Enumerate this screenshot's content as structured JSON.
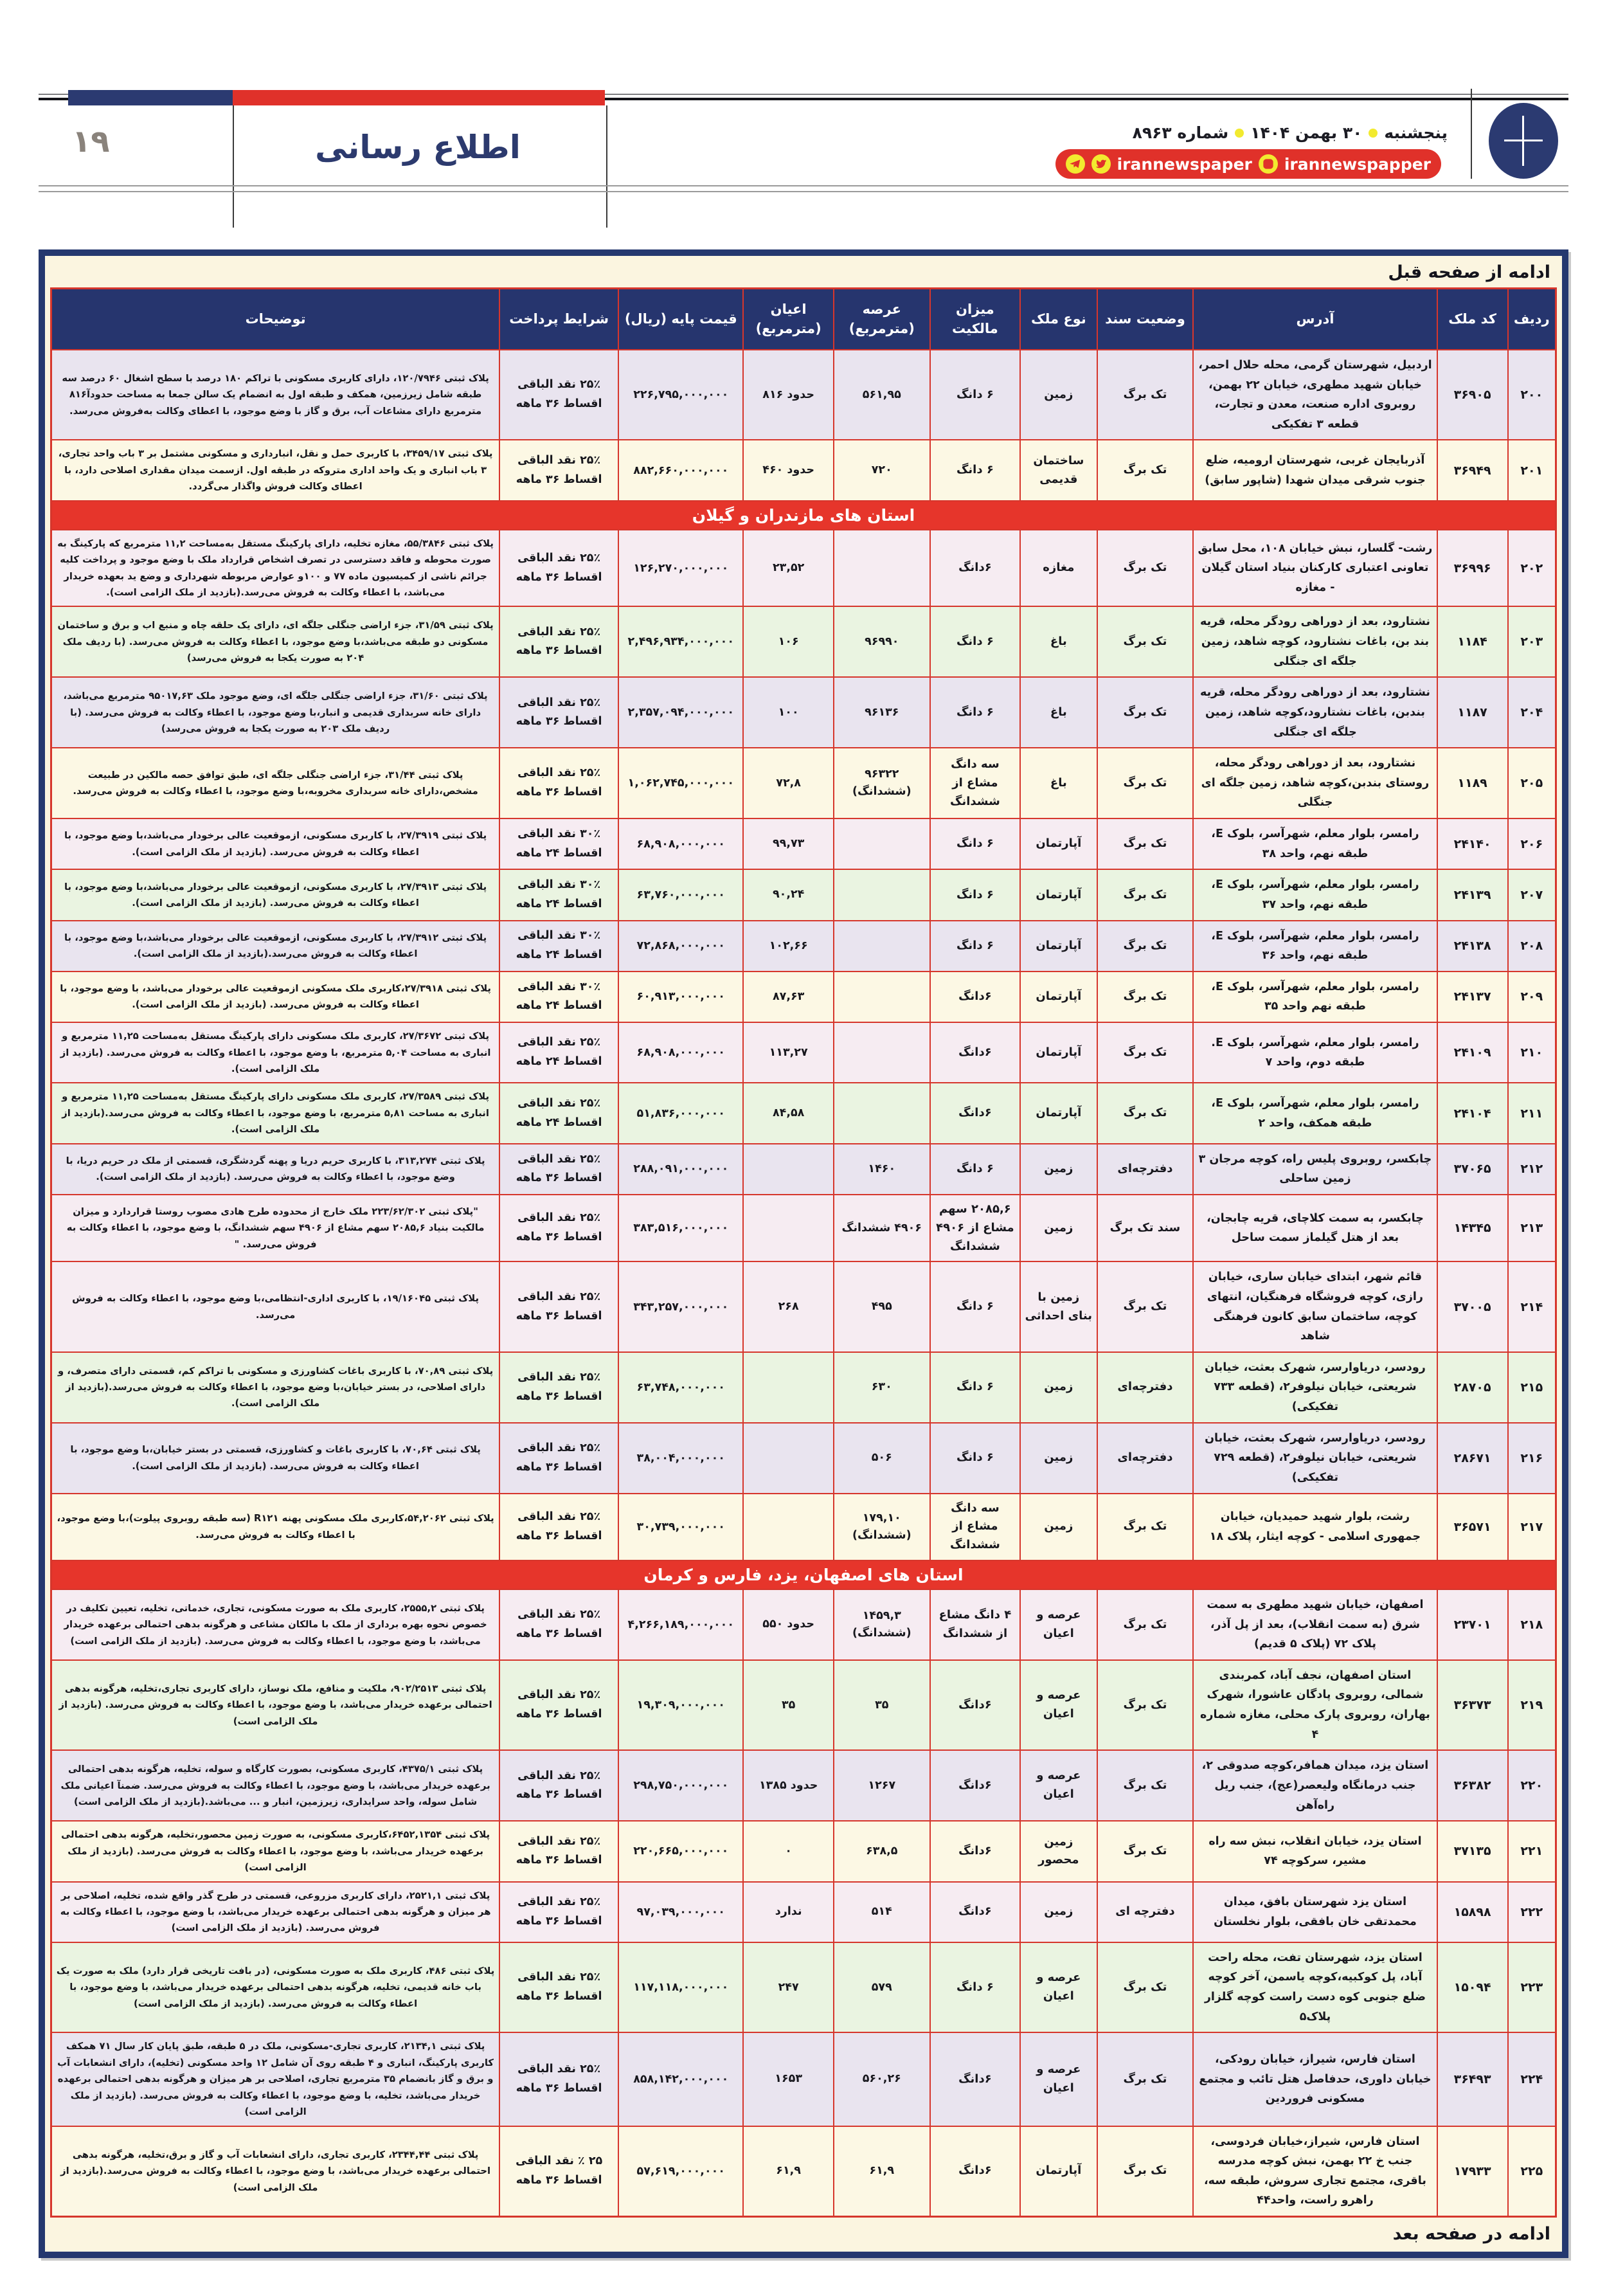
{
  "page": {
    "number": "۱۹",
    "section_title": "اطلاع رسانی",
    "date_parts": [
      "پنجشنبه",
      "۳۰ بهمن ۱۴۰۴",
      "شماره ۸۹۶۳"
    ],
    "social": {
      "handle_main": "irannewspaper",
      "handle_instagram": "irannewspapper"
    },
    "continue_top": "ادامه از صفحه قبل",
    "continue_bottom": "ادامه در صفحه بعد"
  },
  "colors": {
    "masthead_navy": "#2b3a71",
    "masthead_red": "#e0312a",
    "dot_yellow": "#f2ea2f",
    "table_border_navy": "#25386f",
    "grid_red": "#d6362c",
    "header_navy": "#26356e",
    "section_red": "#e6352b",
    "row_pink": "#f6ecf2",
    "row_green": "#eaf4e1",
    "row_lavender": "#e9e4ef",
    "row_cream": "#fcf8e4"
  },
  "table": {
    "columns": [
      "ردیف",
      "کد ملک",
      "آدرس",
      "وضعیت سند",
      "نوع ملک",
      "میزان مالکیت",
      "عرصه (مترمربع)",
      "اعیان (مترمربع)",
      "قیمت پایه (ریال)",
      "شرایط پرداخت",
      "توضیحات"
    ],
    "entries": [
      {
        "no": "۲۰۰",
        "code": "۳۶۹۰۵",
        "address": "اردبیل، شهرستان گرمی، محله حلال احمر، خیابان شهید مطهری، خیابان ۲۲ بهمن، روبروی اداره صنعت، معدن و تجارت، قطعه ۳ تفکیکی",
        "deed": "تک برگ",
        "type": "زمین",
        "ownership": "۶ دانگ",
        "land": "۵۶۱,۹۵",
        "building": "حدود ۸۱۶",
        "price": "۲۲۶,۷۹۵,۰۰۰,۰۰۰",
        "terms": "۲۵٪ نقد الباقی اقساط ۳۶ ماهه",
        "notes": "پلاک ثبتی ۱۲۰/۷۹۴۶، دارای کاربری مسکونی با تراکم ۱۸۰ درصد با سطح اشغال ۶۰ درصد سه طبقه شامل زیرزمین، همکف و طبقه اول به انضمام یک سالن جمعا به مساحت حدودآ۸۱۶ مترمربع دارای مشاعات آب، برق و گاز با وضع موجود، با اعطای وکالت به‌فروش می‌رسد.",
        "tint": "t-lav"
      },
      {
        "no": "۲۰۱",
        "code": "۳۶۹۴۹",
        "address": "آذربایجان غربی، شهرستان ارومیه، ضلع جنوب شرقی میدان شهدا (شاپور سابق)",
        "deed": "تک برگ",
        "type": "ساختمان قدیمی",
        "ownership": "۶ دانگ",
        "land": "۷۲۰",
        "building": "حدود ۴۶۰",
        "price": "۸۸۲,۶۶۰,۰۰۰,۰۰۰",
        "terms": "۲۵٪ نقد الباقی اقساط ۳۶ ماهه",
        "notes": "پلاک ثبتی ۳۴۵۹/۱۷، با کاربری حمل و نقل، انبارداری و مسکونی مشتمل بر ۳ باب واحد تجاری، ۳ باب انباری و یک واحد اداری متروکه در طبقه اول. ازسمت میدان مقداری اصلاحی دارد، با اعطای وکالت فروش واگذار می‌گردد.",
        "tint": "t-cream"
      },
      {
        "section": "استان های مازندران و گیلان"
      },
      {
        "no": "۲۰۲",
        "code": "۳۶۹۹۶",
        "address": "رشت- گلسار، نبش خیابان ۱۰۸، محل سابق تعاونی اعتباری کارکنان بنیاد استان گیلان - مغازه",
        "deed": "تک برگ",
        "type": "مغازه",
        "ownership": "۶دانگ",
        "land": "",
        "building": "۲۳,۵۲",
        "price": "۱۲۶,۲۷۰,۰۰۰,۰۰۰",
        "terms": "۲۵٪ نقد الباقی اقساط ۳۶ ماهه",
        "notes": "پلاک ثبتی ۵۵/۳۸۴۶، مغازه تخلیه، دارای پارکینگ مستقل به‌مساحت ۱۱,۲ مترمربع که پارکینگ به صورت محوطه و فاقد دسترسی در تصرف اشخاص قرارداد ملک با وضع موجود و پرداخت کلیه جرائم ناشی از کمیسیون ماده ۷۷ و ۱۰۰و عوارض مربوطه شهرداری و وضع ید بعهده خریدار می‌باشد، با اعطاء وکالت به فروش می‌رسد.(بازدید از ملک الزامی است).",
        "tint": "t-pink"
      },
      {
        "no": "۲۰۳",
        "code": "۱۱۸۴",
        "address": "نشتارود، بعد از دوراهی رودگر محله، قریه بند بن، باغات نشتارود، کوچه شاهد، زمین جلگه ای جنگلی",
        "deed": "تک برگ",
        "type": "باغ",
        "ownership": "۶ دانگ",
        "land": "۹۶۹۹۰",
        "building": "۱۰۶",
        "price": "۲,۴۹۶,۹۳۴,۰۰۰,۰۰۰",
        "terms": "۲۵٪ نقد الباقی اقساط ۳۶ ماهه",
        "notes": "پلاک ثبتی ۳۱/۵۹، جزء اراضی جنگلی جلگه ای، دارای یک حلقه چاه و منبع اب و برق و ساختمان مسکونی دو طبقه می‌باشد،با وضع موجود، با اعطاء وکالت به فروش می‌رسد. (با ردیف ملک ۲۰۴ به صورت یکجا به فروش می‌رسد)",
        "tint": "t-green"
      },
      {
        "no": "۲۰۴",
        "code": "۱۱۸۷",
        "address": "نشتارود، بعد از دوراهی رودگر محله، قریه بندبن، باغات نشتارود،کوچه شاهد، زمین جلگه ای جنگلی",
        "deed": "تک برگ",
        "type": "باغ",
        "ownership": "۶ دانگ",
        "land": "۹۶۱۳۶",
        "building": "۱۰۰",
        "price": "۲,۳۵۷,۰۹۴,۰۰۰,۰۰۰",
        "terms": "۲۵٪ نقد الباقی اقساط ۳۶ ماهه",
        "notes": "پلاک ثبتی ۳۱/۶۰، جزء اراضی جنگلی جلگه ای، وضع موجود ملک ۹۵۰۱۷,۶۳ مترمربع می‌باشد، دارای خانه سربداری قدیمی و انبار،با وضع موجود، با اعطاء وکالت به فروش می‌رسد. (با ردیف ملک ۲۰۳ به صورت یکجا به فروش می‌رسد)",
        "tint": "t-lav"
      },
      {
        "no": "۲۰۵",
        "code": "۱۱۸۹",
        "address": "نشتارود، بعد از دوراهی رودگر محله، روستای بندبن،کوچه شاهد، زمین جلگه ای جنگلی",
        "deed": "تک برگ",
        "type": "باغ",
        "ownership": "سه دانگ مشاع از ششدانگ",
        "land": "۹۶۳۲۲ (ششدانگ)",
        "building": "۷۲,۸",
        "price": "۱,۰۶۲,۷۴۵,۰۰۰,۰۰۰",
        "terms": "۲۵٪ نقد الباقی اقساط ۳۶ ماهه",
        "notes": "پلاک ثبتی ۳۱/۴۴، جزء اراضی جنگلی جلگه ای، طبق توافق حصه مالکین در طبیعت مشخص،دارای خانه سربداری مخروبه،با وضع موجود، با اعطاء وکالت به فروش می‌رسد.",
        "tint": "t-cream"
      },
      {
        "no": "۲۰۶",
        "code": "۲۴۱۴۰",
        "address": "رامسر، بلوار معلم، شهرآسر، بلوک E، طبقه نهم، واحد ۳۸",
        "deed": "تک برگ",
        "type": "آپارتمان",
        "ownership": "۶ دانگ",
        "land": "",
        "building": "۹۹,۷۳",
        "price": "۶۸,۹۰۸,۰۰۰,۰۰۰",
        "terms": "۳۰٪ نقد الباقی اقساط ۲۴ ماهه",
        "notes": "پلاک ثبتی ۲۷/۳۹۱۹، با کاربری مسکونی، ازموقعیت عالی برخودار می‌باشد،با وضع موجود، با اعطاء وکالت به فروش می‌رسد. (بازدید از ملک الزامی است).",
        "tint": "t-pink"
      },
      {
        "no": "۲۰۷",
        "code": "۲۴۱۳۹",
        "address": "رامسر، بلوار معلم، شهرآسر، بلوک E، طبقه نهم، واحد ۳۷",
        "deed": "تک برگ",
        "type": "آپارتمان",
        "ownership": "۶ دانگ",
        "land": "",
        "building": "۹۰,۲۴",
        "price": "۶۳,۷۶۰,۰۰۰,۰۰۰",
        "terms": "۳۰٪ نقد الباقی اقساط ۲۴ ماهه",
        "notes": "پلاک ثبتی ۲۷/۳۹۱۳، با کاربری مسکونی، ازموقعیت عالی برخودار می‌باشد،با وضع موجود، با اعطاء وکالت به فروش می‌رسد. (بازدید از ملک الزامی است).",
        "tint": "t-green"
      },
      {
        "no": "۲۰۸",
        "code": "۲۴۱۳۸",
        "address": "رامسر، بلوار معلم، شهرآسر، بلوک E، طبقه نهم، واحد ۳۶",
        "deed": "تک برگ",
        "type": "آپارتمان",
        "ownership": "۶ دانگ",
        "land": "",
        "building": "۱۰۲,۶۶",
        "price": "۷۲,۸۶۸,۰۰۰,۰۰۰",
        "terms": "۳۰٪ نقد الباقی اقساط ۲۴ ماهه",
        "notes": "پلاک ثبتی ۲۷/۳۹۱۲، با کاربری مسکونی، ازموقعیت عالی برخودار می‌باشد،با وضع موجود، با اعطاء وکالت به فروش می‌رسد.(بازدید از ملک الزامی است).",
        "tint": "t-lav"
      },
      {
        "no": "۲۰۹",
        "code": "۲۴۱۳۷",
        "address": "رامسر، بلوار معلم، شهرآسر، بلوک E، طبقه نهم واحد ۳۵",
        "deed": "تک برگ",
        "type": "آپارتمان",
        "ownership": "۶دانگ",
        "land": "",
        "building": "۸۷,۶۳",
        "price": "۶۰,۹۱۳,۰۰۰,۰۰۰",
        "terms": "۳۰٪ نقد الباقی اقساط ۲۴ ماهه",
        "notes": "پلاک ثبتی ۲۷/۳۹۱۸،کاربری ملک مسکونی ازموقعیت عالی برخودار می‌باشد، با وضع موجود، با اعطاء وکالت به فروش می‌رسد. (بازدید از ملک الزامی است).",
        "tint": "t-cream"
      },
      {
        "no": "۲۱۰",
        "code": "۲۴۱۰۹",
        "address": "رامسر، بلوار معلم، شهرآسر، بلوک E. طبقه دوم، واحد ۷",
        "deed": "تک برگ",
        "type": "آپارتمان",
        "ownership": "۶دانگ",
        "land": "",
        "building": "۱۱۳,۲۷",
        "price": "۶۸,۹۰۸,۰۰۰,۰۰۰",
        "terms": "۲۵٪ نقد الباقی اقساط ۲۴ ماهه",
        "notes": "پلاک ثبتی ۲۷/۳۶۷۲، کاربری ملک مسکونی دارای پارکینگ مستقل به‌مساحت ۱۱,۲۵ مترمربع و انباری به مساحت ۵,۰۴ مترمربع، با وضع موجود، با اعطاء وکالت به فروش می‌رسد. (بازدید از ملک الزامی است).",
        "tint": "t-pink"
      },
      {
        "no": "۲۱۱",
        "code": "۲۴۱۰۴",
        "address": "رامسر، بلوار معلم، شهرآسر، بلوک E، طبقه همکف، واحد ۲",
        "deed": "تک برگ",
        "type": "آپارتمان",
        "ownership": "۶دانگ",
        "land": "",
        "building": "۸۴,۵۸",
        "price": "۵۱,۸۳۶,۰۰۰,۰۰۰",
        "terms": "۲۵٪ نقد الباقی اقساط ۲۴ ماهه",
        "notes": "پلاک ثبتی ۲۷/۳۵۸۹، کاربری ملک مسکونی دارای پارکینگ مستقل به‌مساحت ۱۱,۲۵ مترمربع و انباری به مساحت ۵,۸۱ مترمربع، با وضع موجود، با اعطاء وکالت به فروش می‌رسد.(بازدید از ملک الزامی است).",
        "tint": "t-green"
      },
      {
        "no": "۲۱۲",
        "code": "۳۷۰۶۵",
        "address": "چابکسر، روبروی پلیس راه، کوچه مرجان ۳ زمین ساحلی",
        "deed": "دفترچه‌ای",
        "type": "زمین",
        "ownership": "۶ دانگ",
        "land": "۱۴۶۰",
        "building": "",
        "price": "۲۸۸,۰۹۱,۰۰۰,۰۰۰",
        "terms": "۲۵٪ نقد الباقی اقساط ۳۶ ماهه",
        "notes": "پلاک ثبتی ۳۱۳,۲۷۴، با کاربری حریم دریا و پهنه گردشگری، قسمتی از ملک در حریم دریا، با وضع موجود، با اعطاء وکالت به فروش می‌رسد. (بازدید از ملک الزامی است).",
        "tint": "t-lav"
      },
      {
        "no": "۲۱۳",
        "code": "۱۴۳۴۵",
        "address": "چابکسر، به سمت کلاچای، قریه چابجان، بعد از هتل گیلماز سمت ساحل",
        "deed": "سند تک برگ",
        "type": "زمین",
        "ownership": "۲۰۸۵,۶ سهم مشاع از ۴۹۰۶ ششدانگ",
        "land": "۴۹۰۶ ششدانگ",
        "building": "",
        "price": "۳۸۳,۵۱۶,۰۰۰,۰۰۰",
        "terms": "۲۵٪ نقد الباقی اقساط ۳۶ ماهه",
        "notes": "\"پلاک ثبتی ۲۲۳/۶۲/۳۰۲ ملک خارج از محدوده طرح هادی مصوب روستا قراردارد و میزان مالکیت بنیاد ۲۰۸۵,۶ سهم مشاع از ۴۹۰۶ سهم ششدانگ، با وضع موجود، با اعطاء وکالت به فروش می‌رسد. \"",
        "tint": "t-pink"
      },
      {
        "no": "۲۱۴",
        "code": "۳۷۰۰۵",
        "address": "قائم شهر، ابتدای خیابان ساری، خیابان رازی، کوچه فروشگاه فرهنگیان، انتهای کوچه، ساختمان سابق کانون فرهنگی شاهد",
        "deed": "تک برگ",
        "type": "زمین با بنای احداثی",
        "ownership": "۶ دانگ",
        "land": "۴۹۵",
        "building": "۲۶۸",
        "price": "۳۴۳,۲۵۷,۰۰۰,۰۰۰",
        "terms": "۲۵٪ نقد الباقی اقساط ۳۶ ماهه",
        "notes": "پلاک ثبتی ۱۹/۱۶۰۴۵، با کاربری اداری-انتظامی،با وضع موجود، با اعطاء وکالت به فروش می‌رسد.",
        "tint": "t-pink"
      },
      {
        "no": "۲۱۵",
        "code": "۲۸۷۰۵",
        "address": "رودسر، دریاوارسر، شهرک بعثت، خیابان شریعتی، خیابان نیلوفر۲، (قطعه ۷۳۳ تفکیکی)",
        "deed": "دفترچه‌ای",
        "type": "زمین",
        "ownership": "۶ دانگ",
        "land": "۶۳۰",
        "building": "",
        "price": "۶۳,۷۴۸,۰۰۰,۰۰۰",
        "terms": "۲۵٪ نقد الباقی اقساط ۳۶ ماهه",
        "notes": "پلاک ثبتی ۷۰,۸۹، با کاربری باغات کشاورزی و مسکونی با تراکم کم، قسمتی دارای متصرف، و دارای اصلاحی، در بستر خیابان،با وضع موجود، با اعطاء وکالت به فروش می‌رسد.(بازدید از ملک الزامی است).",
        "tint": "t-green"
      },
      {
        "no": "۲۱۶",
        "code": "۲۸۶۷۱",
        "address": "رودسر، دریاوارسر، شهرک بعثت، خیابان شریعتی، خیابان نیلوفر۲، (قطعه ۷۲۹ تفکیکی)",
        "deed": "دفترچه‌ای",
        "type": "زمین",
        "ownership": "۶ دانگ",
        "land": "۵۰۶",
        "building": "",
        "price": "۳۸,۰۰۴,۰۰۰,۰۰۰",
        "terms": "۲۵٪ نقد الباقی اقساط ۳۶ ماهه",
        "notes": "پلاک ثبتی ۷۰,۶۴، با کاربری باغات و کشاورزی، قسمتی در بستر خیابان،با وضع موجود، با اعطاء وکالت به فروش می‌رسد. (بازدید از ملک الزامی است).",
        "tint": "t-lav"
      },
      {
        "no": "۲۱۷",
        "code": "۳۶۵۷۱",
        "address": "رشت، بلوار شهید حمیدیان، خیابان جمهوری اسلامی - کوچه ایثار، پلاک ۱۸",
        "deed": "تک برگ",
        "type": "زمین",
        "ownership": "سه دانگ مشاع از ششدانگ",
        "land": "۱۷۹,۱۰ (ششدانگ)",
        "building": "",
        "price": "۳۰,۷۳۹,۰۰۰,۰۰۰",
        "terms": "۲۵٪ نقد الباقی اقساط ۳۶ ماهه",
        "notes": "پلاک ثبتی ۵۴,۲۰۶۲،کاربری ملک مسکونی پهنه R۱۲۱ (سه طبقه روبروی پیلوت)،با وضع موجود، با اعطاء وکالت به فروش می‌رسد.",
        "tint": "t-cream"
      },
      {
        "section": "استان های اصفهان، یزد، فارس و کرمان"
      },
      {
        "no": "۲۱۸",
        "code": "۲۳۷۰۱",
        "address": "اصفهان، خیابان شهید مطهری به سمت شرق (به سمت انقلاب)، بعد از پل آذر، پلاک ۷۲ (پلاک ۵ قدیم)",
        "deed": "تک برگ",
        "type": "عرصه و اعیان",
        "ownership": "۴ دانگ مشاع از ششدانگ",
        "land": "۱۴۵۹,۳ (ششدانگ)",
        "building": "حدود ۵۵۰",
        "price": "۴,۲۶۶,۱۸۹,۰۰۰,۰۰۰",
        "terms": "۲۵٪ نقد الباقی اقساط ۳۶ ماهه",
        "notes": "پلاک ثبتی ۲۵۵۵,۲، کاربری ملک به صورت مسکونی، تجاری، خدماتی، تخلیه، تعیین تکلیف در خصوص نحوه بهره برداری از ملک با مالکان مشاعی و هرگونه بدهی احتمالی برعهده خریدار می‌باشد، با وضع موجود، با اعطاء وکالت به فروش می‌رسد. (بازدید از ملک الزامی است)",
        "tint": "t-pink"
      },
      {
        "no": "۲۱۹",
        "code": "۳۶۳۷۳",
        "address": "استان اصفهان، نجف آباد، کمربندی شمالی، روبروی پادگان عاشورا، شهرک بهاران، روبروی پارک محلی، مغازه شماره ۴",
        "deed": "تک برگ",
        "type": "عرصه و اعیان",
        "ownership": "۶دانگ",
        "land": "۳۵",
        "building": "۳۵",
        "price": "۱۹,۳۰۹,۰۰۰,۰۰۰",
        "terms": "۲۵٪ نقد الباقی اقساط ۳۶ ماهه",
        "notes": "پلاک ثبتی ۹۰۲/۲۵۱۳، ملکیت و منافع، ملک نوساز، دارای کاربری تجاری،تخلیه، هرگونه بدهی احتمالی برعهده خریدار می‌باشد، با وضع موجود، با اعطاء وکالت به فروش می‌رسد. (بازدید از ملک الزامی است)",
        "tint": "t-green"
      },
      {
        "no": "۲۲۰",
        "code": "۳۶۳۸۲",
        "address": "استان یزد، میدان همافر،کوچه صدوقی ۲، جنب درمانگاه ولیعصر(عج)، جنب ریل راه‌آهن",
        "deed": "تک برگ",
        "type": "عرصه و اعیان",
        "ownership": "۶دانگ",
        "land": "۱۲۶۷",
        "building": "حدود ۱۳۸۵",
        "price": "۲۹۸,۷۵۰,۰۰۰,۰۰۰",
        "terms": "۲۵٪ نقد الباقی اقساط ۳۶ ماهه",
        "notes": "پلاک ثبتی ۴۳۷۵/۱، کاربری مسکونی، بصورت کارگاه و سوله، تخلیه، هرگونه بدهی احتمالی برعهده خریدار می‌باشد، با وضع موجود، با اعطاء وکالت به فروش می‌رسد. ضمنآ اعیانی ملک شامل سوله، واحد سرایداری، زیرزمین، انبار و ... می‌باشد.(بازدید از ملک الزامی است)",
        "tint": "t-lav"
      },
      {
        "no": "۲۲۱",
        "code": "۳۷۱۳۵",
        "address": "استان یزد، خیابان انقلاب، نبش سه راه مشیر، سرکوچه ۷۴",
        "deed": "تک برگ",
        "type": "زمین محصور",
        "ownership": "۶دانگ",
        "land": "۶۳۸,۵",
        "building": "۰",
        "price": "۲۲۰,۶۶۵,۰۰۰,۰۰۰",
        "terms": "۲۵٪ نقد الباقی اقساط ۳۶ ماهه",
        "notes": "پلاک ثبتی ۶۴۵۲,۱۳۵۴،کاربری مسکونی، به صورت زمین محصور،تخلیه، هرگونه بدهی احتمالی برعهده خریدار می‌باشد، با وضع موجود، با اعطاء وکالت به فروش می‌رسد. (بازدید از ملک الزامی است)",
        "tint": "t-cream"
      },
      {
        "no": "۲۲۲",
        "code": "۱۵۸۹۸",
        "address": "استان یزد شهرستان بافق، میدان محمدتقی خان بافقی، بلوار نخلستان",
        "deed": "دفترچه ای",
        "type": "زمین",
        "ownership": "۶دانگ",
        "land": "۵۱۴",
        "building": "ندارد",
        "price": "۹۷,۰۳۹,۰۰۰,۰۰۰",
        "terms": "۲۵٪ نقد الباقی اقساط ۳۶ ماهه",
        "notes": "پلاک ثبتی ۲۵۲۱,۱، دارای کاربری مزروعی، قسمتی در طرح گذر واقع شده، تخلیه، اصلاحی بر هر میزان و هرگونه بدهی احتمالی برعهده خریدار می‌باشد، با وضع موجود، با اعطاء وکالت به فروش می‌رسد. (بازدید از ملک الزامی است)",
        "tint": "t-pink"
      },
      {
        "no": "۲۲۳",
        "code": "۱۵۰۹۴",
        "address": "استان یزد، شهرستان تفت، محله راحت آباد، پل کوکبیه،کوچه یاسمن، آخر کوچه ضلع جنوبی کوه دست راست کوچه گلزار پلاک۵",
        "deed": "تک برگ",
        "type": "عرصه و اعیان",
        "ownership": "۶ دانگ",
        "land": "۵۷۹",
        "building": "۲۴۷",
        "price": "۱۱۷,۱۱۸,۰۰۰,۰۰۰",
        "terms": "۲۵٪ نقد الباقی اقساط ۳۶ ماهه",
        "notes": "پلاک ثبتی ۴۸۶، کاربری ملک به صورت مسکونی، (در بافت تاریخی قرار دارد) ملک به صورت یک باب خانه قدیمی، تخلیه، هرگونه بدهی احتمالی برعهده خریدار می‌باشد، با وضع موجود، با اعطاء وکالت به فروش می‌رسد. (بازدید از ملک الزامی است)",
        "tint": "t-green"
      },
      {
        "no": "۲۲۴",
        "code": "۳۶۴۹۳",
        "address": "استان فارس، شیراز، خیابان رودکی، خیابان داوری، حدفاصل هتل تائب و مجتمع مسکونی فروردین",
        "deed": "تک برگ",
        "type": "عرصه و اعیان",
        "ownership": "۶دانگ",
        "land": "۵۶۰,۲۶",
        "building": "۱۶۵۳",
        "price": "۸۵۸,۱۴۲,۰۰۰,۰۰۰",
        "terms": "۲۵٪ نقد الباقی اقساط ۳۶ ماهه",
        "notes": "پلاک ثبتی ۲۱۳۴,۱، کاربری تجاری-مسکونی، ملک در ۵ طبقه، طبق پایان کار سال ۷۱ همکف کاربری پارکینگ، انباری و ۴ طبقه روی آن شامل ۱۲ واحد مسکونی (تخلیه)، دارای انشعابات آب و برق و گاز بانضمام ۳۵ مترمربع تجاری، اصلاحی بر هر میزان و هرگونه بدهی احتمالی برعهده خریدار می‌باشد، تخلیه، با وضع موجود، با اعطاء وکالت به فروش می‌رسد. (بازدید از ملک الزامی است)",
        "tint": "t-lav"
      },
      {
        "no": "۲۲۵",
        "code": "۱۷۹۳۳",
        "address": "استان فارس، شیراز،خیابان فردوسی، جنب خ ۲۲ بهمن، نبش کوچه مدرسه باقری، مجتمع تجاری سروش، طبقه سه، راهرو راست، واحد۴۴",
        "deed": "تک برگ",
        "type": "آپارتمان",
        "ownership": "۶دانگ",
        "land": "۶۱,۹",
        "building": "۶۱,۹",
        "price": "۵۷,۶۱۹,۰۰۰,۰۰۰",
        "terms": "۲۵ ٪ نقد الباقی اقساط ۳۶ ماهه",
        "notes": "پلاک ثبتی ۲۳۴۴,۴۴، کاربری تجاری، دارای انشعابات آب و گاز و برق،تخلیه، هرگونه بدهی احتمالی برعهده خریدار می‌باشد، با وضع موجود، با اعطاء وکالت به فروش می‌رسد.(بازدید از ملک الزامی است)",
        "tint": "t-cream"
      }
    ]
  }
}
